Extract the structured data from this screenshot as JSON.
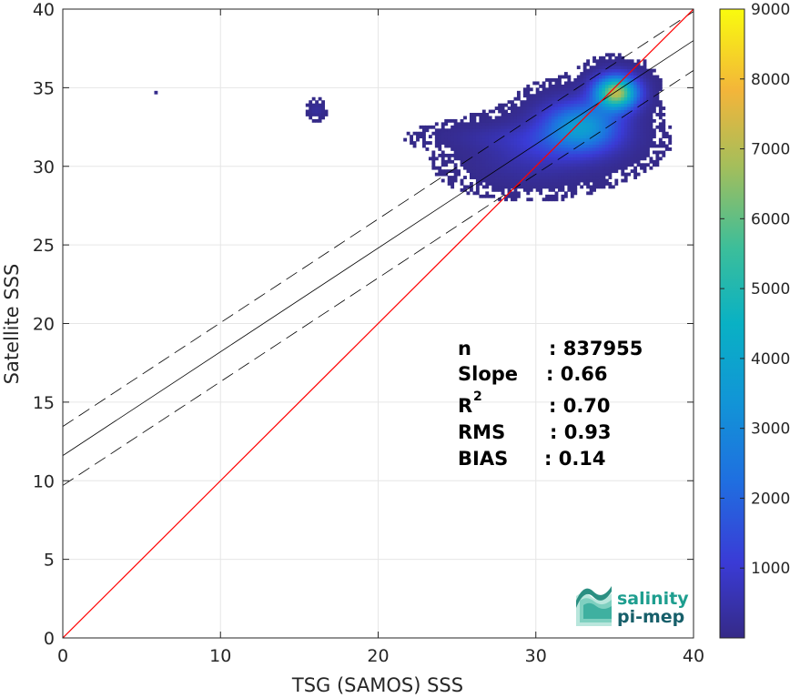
{
  "chart_data": {
    "type": "heatmap",
    "xlabel": "TSG (SAMOS) SSS",
    "ylabel": "Satellite SSS",
    "xlim": [
      0,
      40
    ],
    "ylim": [
      0,
      40
    ],
    "xticks": [
      0,
      10,
      20,
      30,
      40
    ],
    "yticks": [
      0,
      5,
      10,
      15,
      20,
      25,
      30,
      35,
      40
    ],
    "grid": true,
    "colorbar": {
      "colormap": "parula",
      "range": [
        0,
        9000
      ],
      "ticks": [
        1000,
        2000,
        3000,
        4000,
        5000,
        6000,
        7000,
        8000,
        9000
      ]
    },
    "reference_lines": {
      "identity": {
        "slope": 1,
        "intercept": 0,
        "color": "#ff0000"
      },
      "regression": {
        "slope": 0.66,
        "intercept": 11.6,
        "color": "#000000"
      },
      "regression_upper": {
        "slope": 0.66,
        "intercept": 13.45,
        "style": "dashed"
      },
      "regression_lower": {
        "slope": 0.66,
        "intercept": 9.7,
        "style": "dashed"
      }
    },
    "density_clusters": [
      {
        "x": 35.0,
        "y": 34.6,
        "sx": 0.9,
        "sy": 0.7,
        "peak": 7000
      },
      {
        "x": 32.8,
        "y": 32.5,
        "sx": 1.6,
        "sy": 1.0,
        "peak": 3500
      },
      {
        "x": 31.0,
        "y": 31.3,
        "sx": 2.6,
        "sy": 0.9,
        "peak": 900
      },
      {
        "x": 27.5,
        "y": 31.8,
        "sx": 2.5,
        "sy": 0.5,
        "peak": 250
      },
      {
        "x": 29.5,
        "y": 29.8,
        "sx": 2.5,
        "sy": 0.9,
        "peak": 250
      },
      {
        "x": 16.0,
        "y": 33.5,
        "sx": 0.3,
        "sy": 0.3,
        "peak": 300
      },
      {
        "x": 5.9,
        "y": 34.5,
        "sx": 0.1,
        "sy": 0.1,
        "peak": 150
      }
    ],
    "stats": {
      "labels": [
        "n",
        "Slope",
        "R",
        "RMS",
        "BIAS"
      ],
      "r_superscript": "2",
      "values": [
        ": 837955",
        ": 0.66",
        ": 0.70",
        ": 0.93",
        ": 0.14"
      ]
    }
  },
  "logo": {
    "line1": "salinity",
    "line2": "pi-mep"
  }
}
